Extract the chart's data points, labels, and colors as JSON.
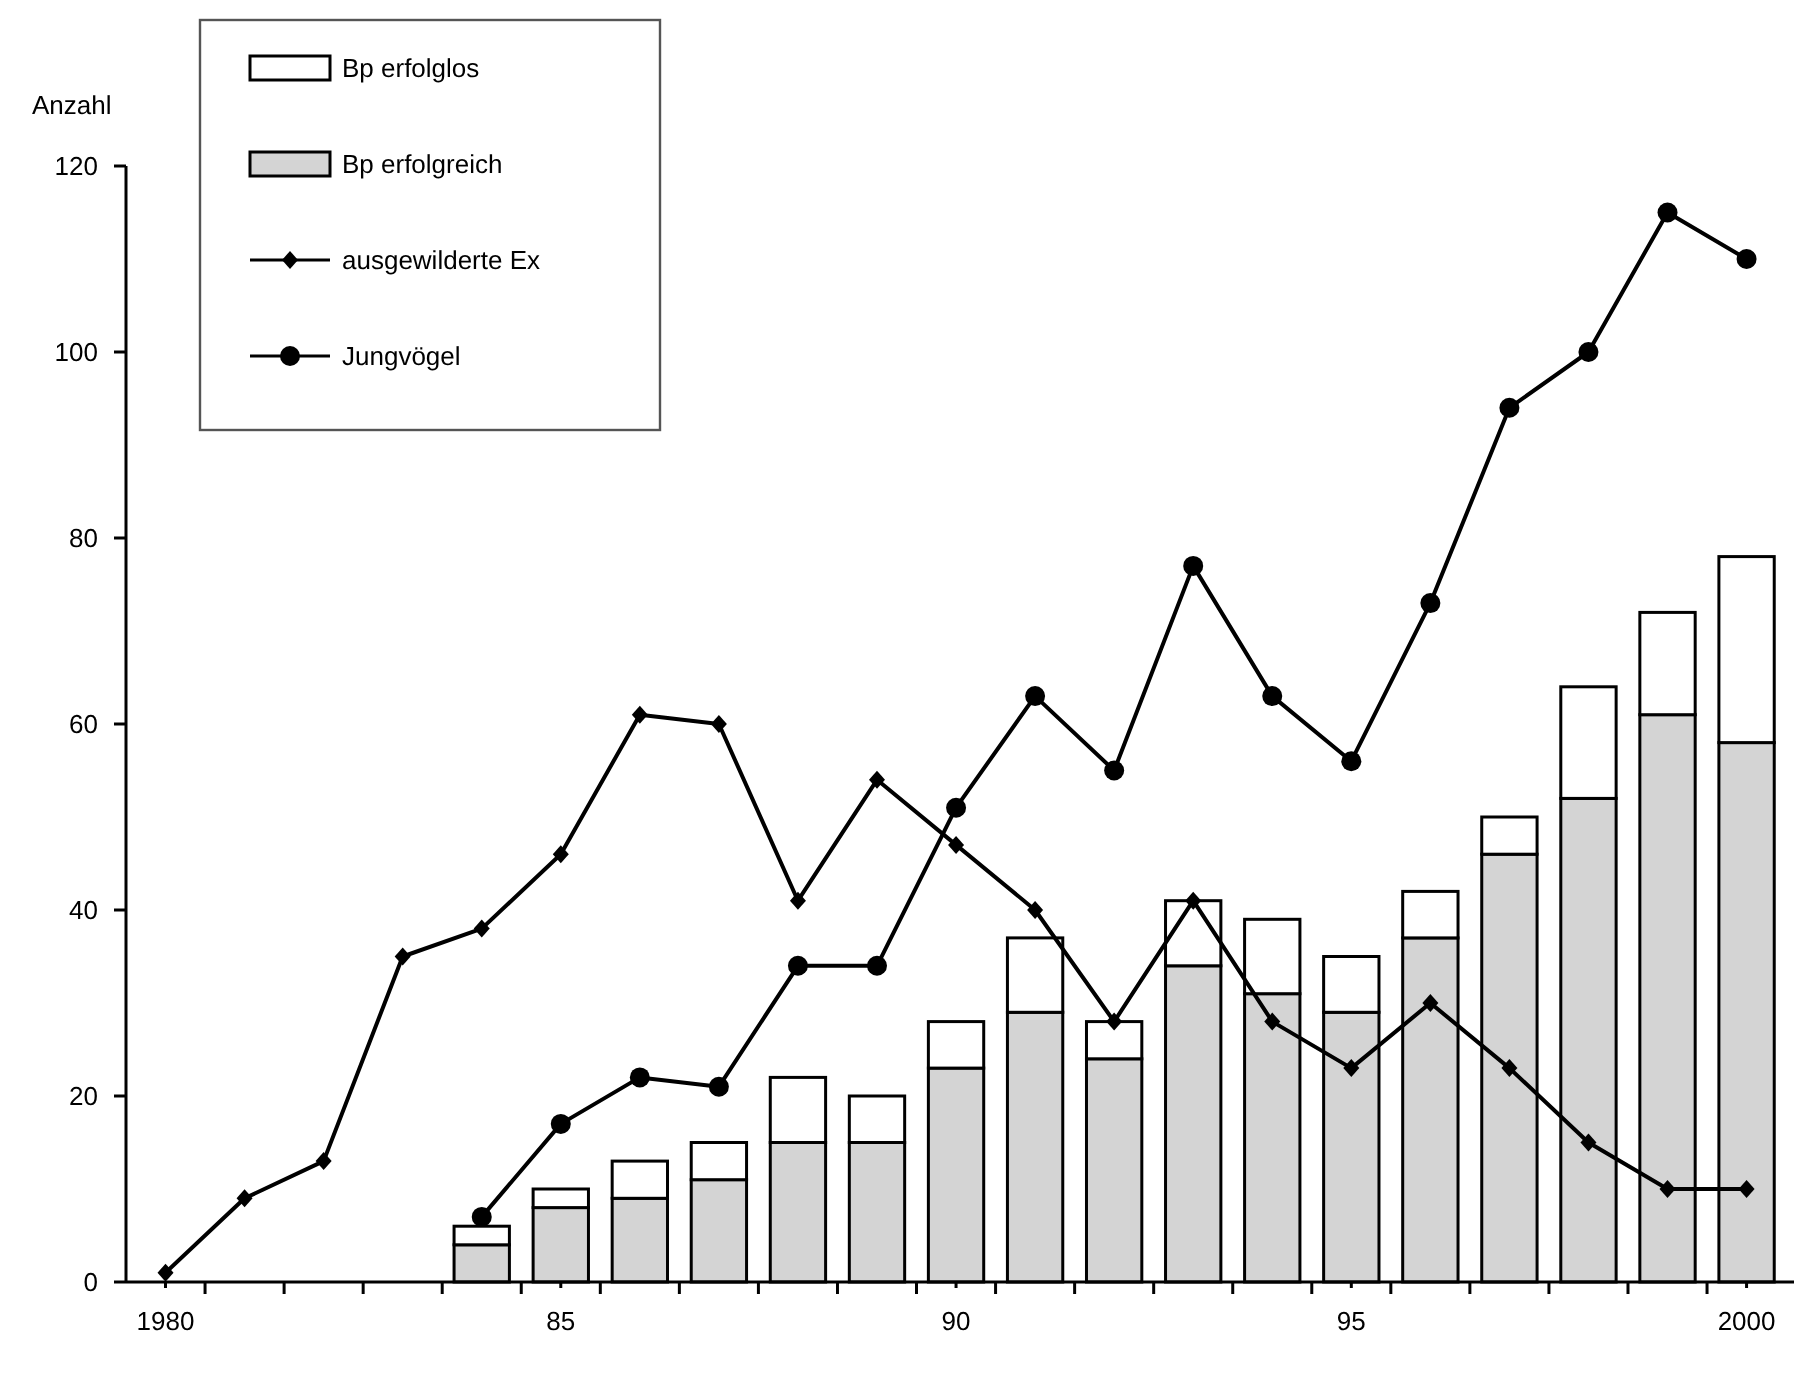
{
  "chart_data": {
    "type": "bar",
    "ylabel": "Anzahl",
    "stacked": true,
    "xlim": [
      1979.5,
      2000.6
    ],
    "ylim": [
      0,
      120
    ],
    "yticks": [
      0,
      20,
      40,
      60,
      80,
      100,
      120
    ],
    "xticks": [
      {
        "value": 1980,
        "label": "1980"
      },
      {
        "value": 1985,
        "label": "85"
      },
      {
        "value": 1990,
        "label": "90"
      },
      {
        "value": 1995,
        "label": "95"
      },
      {
        "value": 2000,
        "label": "2000"
      },
      {
        "value": 1980.5,
        "label": null
      },
      {
        "value": 1981.5,
        "label": null
      },
      {
        "value": 1982.5,
        "label": null
      },
      {
        "value": 1983.5,
        "label": null
      },
      {
        "value": 1984.5,
        "label": null
      },
      {
        "value": 1985.5,
        "label": null
      },
      {
        "value": 1986.5,
        "label": null
      },
      {
        "value": 1987.5,
        "label": null
      },
      {
        "value": 1988.5,
        "label": null
      },
      {
        "value": 1989.5,
        "label": null
      },
      {
        "value": 1990.5,
        "label": null
      },
      {
        "value": 1991.5,
        "label": null
      },
      {
        "value": 1992.5,
        "label": null
      },
      {
        "value": 1993.5,
        "label": null
      },
      {
        "value": 1994.5,
        "label": null
      },
      {
        "value": 1995.5,
        "label": null
      },
      {
        "value": 1996.5,
        "label": null
      },
      {
        "value": 1997.5,
        "label": null
      },
      {
        "value": 1998.5,
        "label": null
      },
      {
        "value": 1999.5,
        "label": null
      }
    ],
    "grid": false,
    "legend": "top left",
    "series": [
      {
        "name": "Bp erfolgreich",
        "color": "#d4d4d4",
        "x": [
          1984,
          1985,
          1986,
          1987,
          1988,
          1989,
          1990,
          1991,
          1992,
          1993,
          1994,
          1995,
          1996,
          1997,
          1998,
          1999,
          2000
        ],
        "values": [
          4,
          8,
          9,
          11,
          15,
          15,
          23,
          29,
          24,
          34,
          31,
          29,
          37,
          46,
          52,
          61,
          58
        ]
      },
      {
        "name": "Bp erfolglos",
        "color": "#ffffff",
        "x": [
          1984,
          1985,
          1986,
          1987,
          1988,
          1989,
          1990,
          1991,
          1992,
          1993,
          1994,
          1995,
          1996,
          1997,
          1998,
          1999,
          2000
        ],
        "values": [
          2,
          2,
          4,
          4,
          7,
          5,
          5,
          8,
          4,
          7,
          8,
          6,
          5,
          4,
          12,
          11,
          20
        ]
      },
      {
        "name": "ausgewilderte Ex",
        "type": "line",
        "color": "#000000",
        "marker": "diamond",
        "x": [
          1980,
          1981,
          1982,
          1983,
          1984,
          1985,
          1986,
          1987,
          1988,
          1989,
          1990,
          1991,
          1992,
          1993,
          1994,
          1995,
          1996,
          1997,
          1998,
          1999,
          2000
        ],
        "values": [
          1,
          9,
          13,
          35,
          38,
          46,
          61,
          60,
          41,
          54,
          47,
          40,
          28,
          41,
          28,
          23,
          30,
          23,
          15,
          10,
          10
        ]
      },
      {
        "name": "Jungvögel",
        "type": "line",
        "color": "#000000",
        "marker": "circle",
        "x": [
          1984,
          1985,
          1986,
          1987,
          1988,
          1989,
          1990,
          1991,
          1992,
          1993,
          1994,
          1995,
          1996,
          1997,
          1998,
          1999,
          2000
        ],
        "values": [
          7,
          17,
          22,
          21,
          34,
          34,
          51,
          63,
          55,
          77,
          63,
          56,
          73,
          94,
          100,
          115,
          110
        ]
      }
    ]
  }
}
